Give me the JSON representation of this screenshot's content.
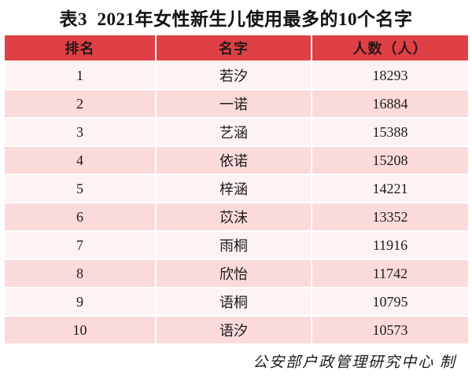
{
  "title": "表3  2021年女性新生儿使用最多的10个名字",
  "table": {
    "headers": [
      "排名",
      "名字",
      "人数（人）"
    ],
    "rows": [
      {
        "rank": "1",
        "name": "若汐",
        "count": "18293"
      },
      {
        "rank": "2",
        "name": "一诺",
        "count": "16884"
      },
      {
        "rank": "3",
        "name": "艺涵",
        "count": "15388"
      },
      {
        "rank": "4",
        "name": "依诺",
        "count": "15208"
      },
      {
        "rank": "5",
        "name": "梓涵",
        "count": "14221"
      },
      {
        "rank": "6",
        "name": "苡沫",
        "count": "13352"
      },
      {
        "rank": "7",
        "name": "雨桐",
        "count": "11916"
      },
      {
        "rank": "8",
        "name": "欣怡",
        "count": "11742"
      },
      {
        "rank": "9",
        "name": "语桐",
        "count": "10795"
      },
      {
        "rank": "10",
        "name": "语汐",
        "count": "10573"
      }
    ]
  },
  "footer_credit": "公安部户政管理研究中心 制",
  "colors": {
    "header_background": "#df4045",
    "row_odd_background": "#fdf3f2",
    "row_even_background": "#fbdadb",
    "text": "#1c1c1c"
  },
  "chart_data": {
    "type": "table",
    "title": "表3  2021年女性新生儿使用最多的10个名字",
    "categories": [
      "若汐",
      "一诺",
      "艺涵",
      "依诺",
      "梓涵",
      "苡沫",
      "雨桐",
      "欣怡",
      "语桐",
      "语汐"
    ],
    "values": [
      18293,
      16884,
      15388,
      15208,
      14221,
      13352,
      11916,
      11742,
      10795,
      10573
    ],
    "columns": [
      "排名",
      "名字",
      "人数（人）"
    ]
  }
}
